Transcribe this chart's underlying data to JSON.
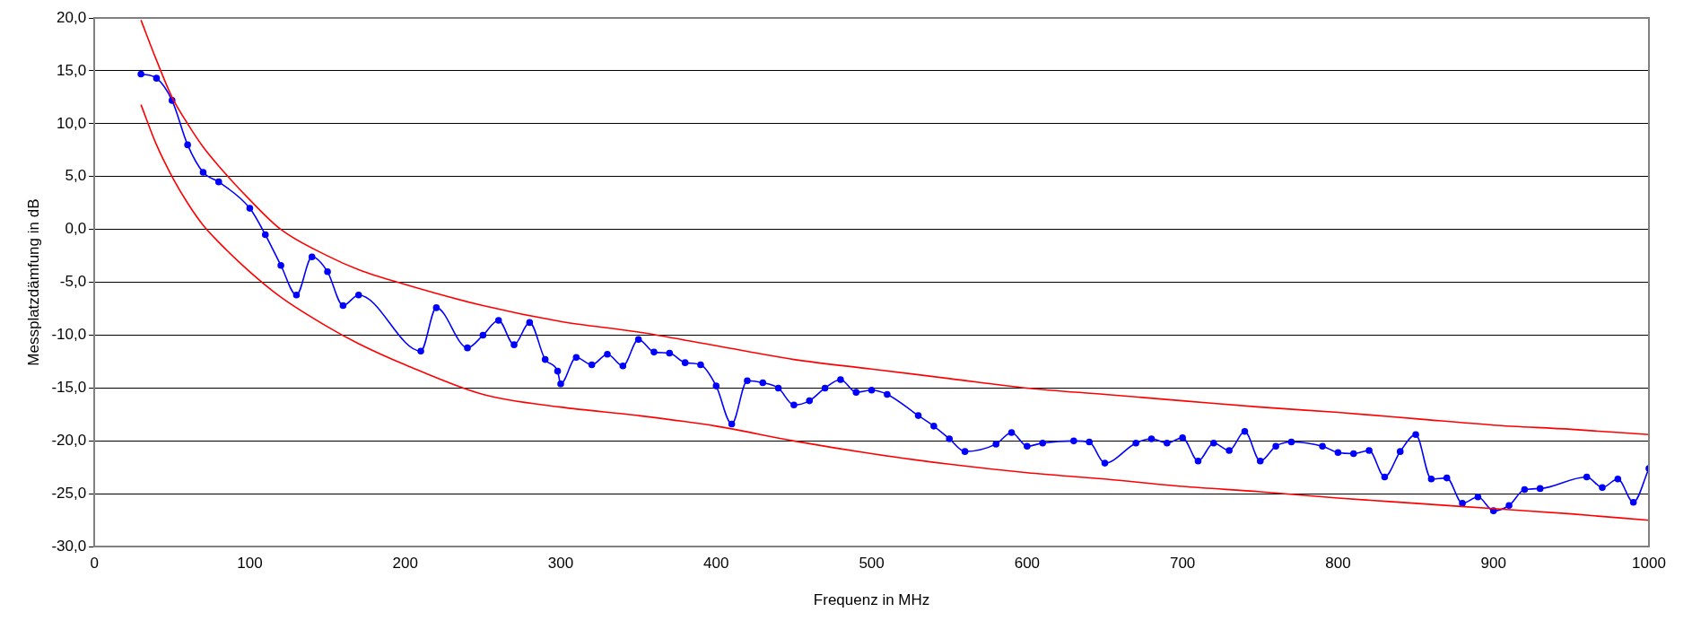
{
  "chart_data": {
    "type": "line",
    "xlabel": "Frequenz in MHz",
    "ylabel": "Messplatzdämfung in dB",
    "xlim": [
      0,
      1000
    ],
    "xticks": [
      0,
      100,
      200,
      300,
      400,
      500,
      600,
      700,
      800,
      900,
      1000
    ],
    "ylim": [
      -30,
      20
    ],
    "yticks": [
      {
        "value": -30,
        "label": "-30,0"
      },
      {
        "value": -25,
        "label": "-25,0"
      },
      {
        "value": -20,
        "label": "-20,0"
      },
      {
        "value": -15,
        "label": "-15,0"
      },
      {
        "value": -10,
        "label": "-10,0"
      },
      {
        "value": -5,
        "label": "-5,0"
      },
      {
        "value": 0,
        "label": "0,0"
      },
      {
        "value": 5,
        "label": "5,0"
      },
      {
        "value": 10,
        "label": "10,0"
      },
      {
        "value": 15,
        "label": "15,0"
      },
      {
        "value": 20,
        "label": "20,0"
      }
    ],
    "grid": "y",
    "legend": false,
    "marker": "circle",
    "line_style": "solid",
    "series": [
      {
        "color": "#ff0000",
        "marker": "none",
        "x": [
          30,
          40,
          50,
          60,
          70,
          80,
          100,
          120,
          150,
          170,
          200,
          250,
          300,
          350,
          400,
          450,
          500,
          550,
          600,
          650,
          700,
          750,
          800,
          850,
          900,
          950,
          1000
        ],
        "values": [
          19.8,
          16,
          12.5,
          10,
          7.8,
          6,
          2.8,
          0,
          -2.5,
          -3.8,
          -5.2,
          -7.2,
          -8.7,
          -9.7,
          -11,
          -12.3,
          -13.2,
          -14.1,
          -15,
          -15.6,
          -16.2,
          -16.8,
          -17.3,
          -17.9,
          -18.5,
          -18.9,
          -19.4
        ]
      },
      {
        "color": "#ff0000",
        "marker": "none",
        "x": [
          30,
          40,
          50,
          60,
          70,
          80,
          100,
          120,
          150,
          170,
          200,
          250,
          300,
          350,
          400,
          450,
          500,
          550,
          600,
          650,
          700,
          750,
          800,
          850,
          900,
          950,
          1000
        ],
        "values": [
          11.8,
          8,
          5,
          2.5,
          0.4,
          -1.2,
          -4,
          -6.4,
          -9.2,
          -10.8,
          -12.8,
          -15.6,
          -16.8,
          -17.6,
          -18.6,
          -20,
          -21.2,
          -22.2,
          -23,
          -23.6,
          -24.3,
          -24.8,
          -25.4,
          -25.9,
          -26.4,
          -26.9,
          -27.5
        ]
      },
      {
        "color": "#0000ff",
        "x": [
          30,
          40,
          50,
          60,
          70,
          80,
          100,
          110,
          120,
          130,
          140,
          150,
          160,
          170,
          210,
          220,
          240,
          250,
          260,
          270,
          280,
          290,
          298,
          300,
          310,
          320,
          330,
          340,
          350,
          360,
          370,
          380,
          390,
          400,
          410,
          420,
          430,
          440,
          450,
          460,
          470,
          480,
          490,
          500,
          510,
          530,
          540,
          550,
          560,
          580,
          590,
          600,
          610,
          630,
          640,
          650,
          670,
          680,
          690,
          700,
          710,
          720,
          730,
          740,
          750,
          760,
          770,
          790,
          800,
          810,
          820,
          830,
          840,
          850,
          860,
          870,
          880,
          890,
          900,
          910,
          920,
          930,
          960,
          970,
          980,
          990,
          1000
        ],
        "values": [
          14.7,
          14.3,
          12.2,
          8,
          5.4,
          4.5,
          2,
          -0.5,
          -3.4,
          -6.2,
          -2.6,
          -4,
          -7.2,
          -6.2,
          -11.5,
          -7.4,
          -11.2,
          -10,
          -8.6,
          -10.9,
          -8.8,
          -12.3,
          -13.4,
          -14.6,
          -12.1,
          -12.8,
          -11.8,
          -12.9,
          -10.4,
          -11.6,
          -11.7,
          -12.6,
          -12.8,
          -14.8,
          -18.4,
          -14.3,
          -14.5,
          -15,
          -16.6,
          -16.2,
          -15,
          -14.2,
          -15.4,
          -15.2,
          -15.6,
          -17.6,
          -18.6,
          -19.8,
          -21,
          -20.3,
          -19.2,
          -20.5,
          -20.2,
          -20,
          -20.1,
          -22.1,
          -20.2,
          -19.8,
          -20.2,
          -19.7,
          -21.9,
          -20.2,
          -20.9,
          -19.1,
          -21.9,
          -20.5,
          -20.1,
          -20.5,
          -21.1,
          -21.2,
          -20.9,
          -23.4,
          -21,
          -19.4,
          -23.6,
          -23.5,
          -25.9,
          -25.3,
          -26.6,
          -26.1,
          -24.6,
          -24.5,
          -23.4,
          -24.4,
          -23.6,
          -25.8,
          -22.6
        ]
      }
    ]
  }
}
